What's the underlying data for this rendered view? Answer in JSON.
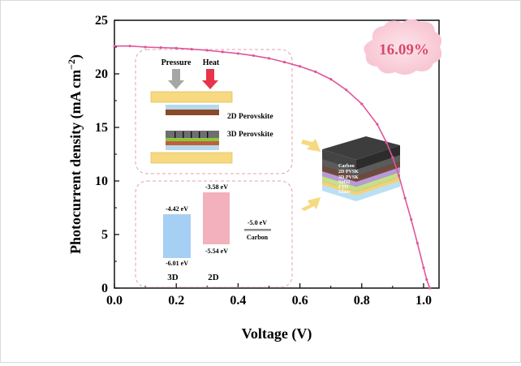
{
  "chart_data": {
    "type": "line",
    "xlabel": "Voltage (V)",
    "ylabel_main": "Photocurrent density (mA cm",
    "ylabel_sup": "−2",
    "ylabel_end": ")",
    "xlim": [
      0.0,
      1.05
    ],
    "ylim": [
      0,
      25
    ],
    "x_ticks": [
      "0.0",
      "0.2",
      "0.4",
      "0.6",
      "0.8",
      "1.0"
    ],
    "y_ticks": [
      "0",
      "5",
      "10",
      "15",
      "20",
      "25"
    ],
    "series": [
      {
        "x": [
          0.0,
          0.05,
          0.1,
          0.15,
          0.2,
          0.25,
          0.3,
          0.35,
          0.4,
          0.45,
          0.5,
          0.55,
          0.6,
          0.65,
          0.7,
          0.75,
          0.8,
          0.85,
          0.88,
          0.9,
          0.92,
          0.94,
          0.96,
          0.98,
          1.0,
          1.01,
          1.02
        ],
        "y": [
          22.6,
          22.6,
          22.5,
          22.45,
          22.4,
          22.3,
          22.2,
          22.05,
          21.9,
          21.7,
          21.45,
          21.1,
          20.7,
          20.2,
          19.5,
          18.5,
          17.2,
          15.3,
          13.6,
          12.2,
          10.5,
          8.4,
          6.4,
          4.2,
          1.9,
          0.8,
          0.0
        ],
        "color": "#e0559b"
      }
    ],
    "grid": false,
    "badge": "16.09%",
    "inset_top": {
      "pressure": "Pressure",
      "heat": "Heat",
      "layer_2d": "2D Perovskite",
      "layer_3d": "3D Perovskite"
    },
    "inset_bottom": {
      "d3_top": "-4.42 eV",
      "d3_bottom": "-6.01 eV",
      "d3_label": "3D",
      "d2_top": "-3.58 eV",
      "d2_bottom": "-5.54 eV",
      "d2_label": "2D",
      "carbon_level": "-5.0 eV",
      "carbon_label": "Carbon"
    },
    "device_stack": [
      "Carbon",
      "2D PVSK",
      "3D PVSK",
      "SnO2",
      "FTO",
      "Glass"
    ]
  }
}
